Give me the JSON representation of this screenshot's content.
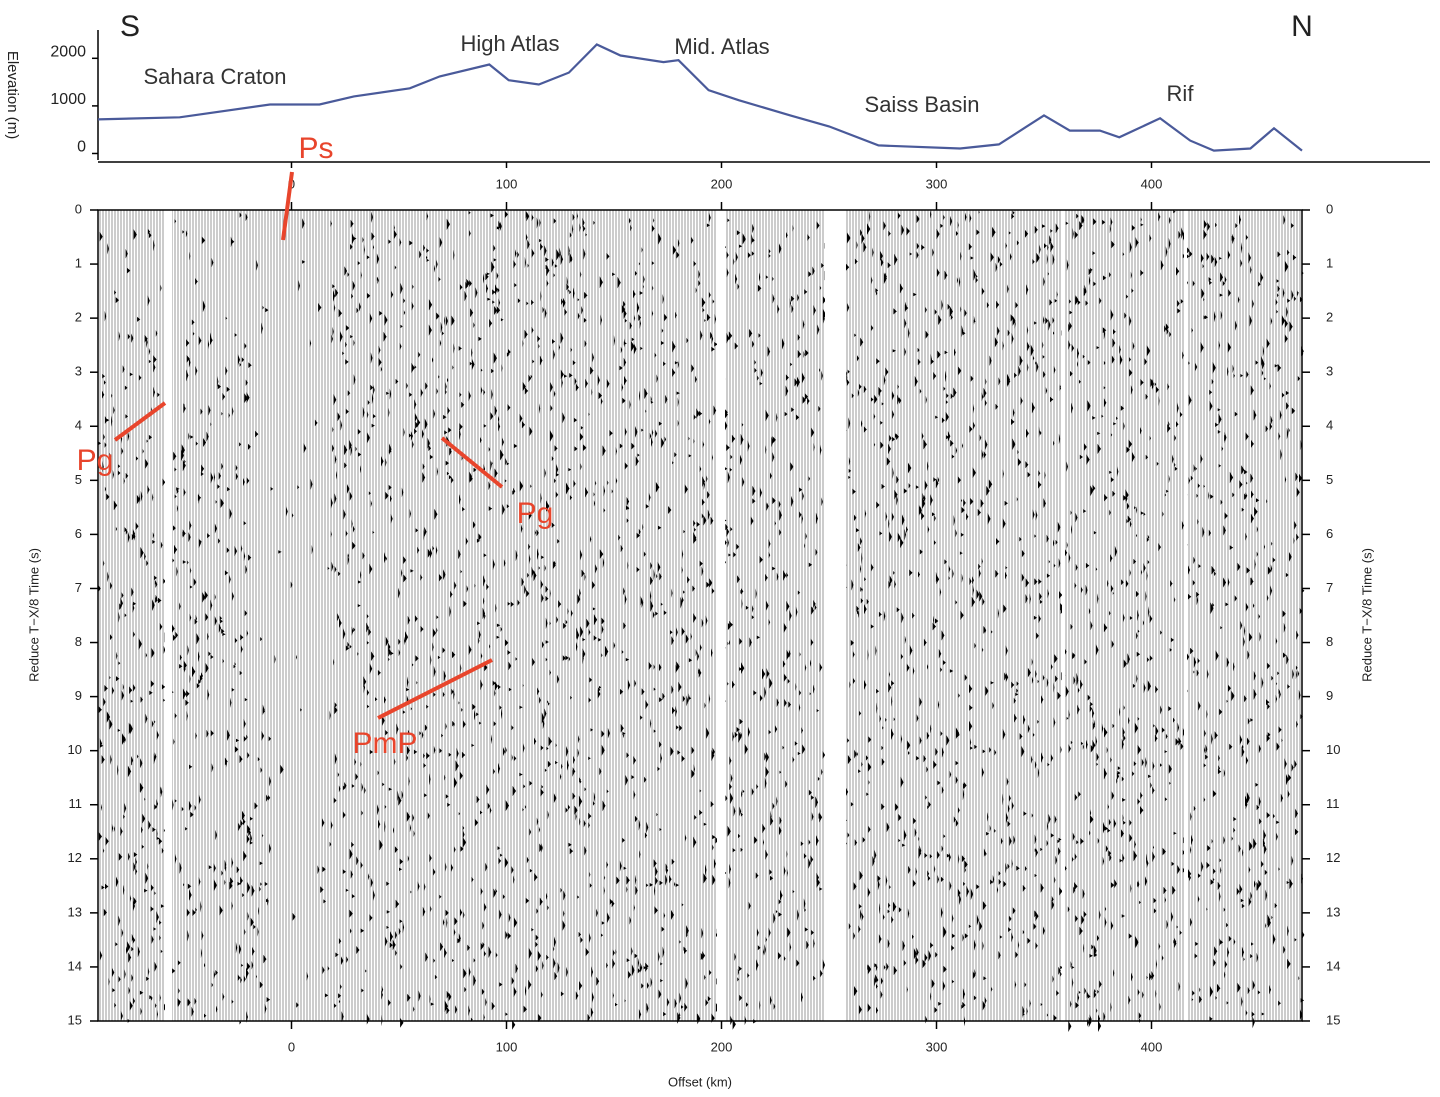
{
  "chart_data": [
    {
      "type": "line",
      "y_label": "Elevation (m)",
      "x": [
        -90,
        -52,
        -10,
        13,
        29,
        55,
        69,
        92,
        101,
        115,
        129,
        142,
        153,
        173,
        180,
        194,
        208,
        232,
        250,
        273,
        311,
        329,
        350,
        362,
        376,
        385,
        404,
        418,
        429,
        446,
        457,
        470
      ],
      "values": [
        716,
        760,
        1030,
        1030,
        1200,
        1370,
        1620,
        1870,
        1540,
        1450,
        1700,
        2290,
        2060,
        1920,
        1960,
        1330,
        1120,
        800,
        570,
        170,
        105,
        190,
        800,
        480,
        480,
        340,
        740,
        270,
        60,
        105,
        530,
        60
      ],
      "color": "#4a5a9a",
      "xlim": [
        -90,
        470
      ],
      "ylim": [
        -200,
        2700
      ],
      "xticks": [
        0,
        100,
        200,
        300,
        400
      ],
      "yticks": [
        0,
        1000,
        2000
      ],
      "annotations": [
        "S",
        "N",
        "Sahara Craton",
        "High Atlas",
        "Mid. Atlas",
        "Saiss Basin",
        "Rif"
      ]
    },
    {
      "type": "section",
      "x_label": "Offset (km)",
      "y_label": "Reduce T−X/8 Time (s)",
      "xlim": [
        -90,
        470
      ],
      "ylim": [
        0,
        15
      ],
      "xticks": [
        0,
        100,
        200,
        300,
        400
      ],
      "yticks": [
        0,
        1,
        2,
        3,
        4,
        5,
        6,
        7,
        8,
        9,
        10,
        11,
        12,
        13,
        14,
        15
      ],
      "annotations": [
        "Ps",
        "Pg",
        "Pg",
        "PmP"
      ]
    }
  ]
}
